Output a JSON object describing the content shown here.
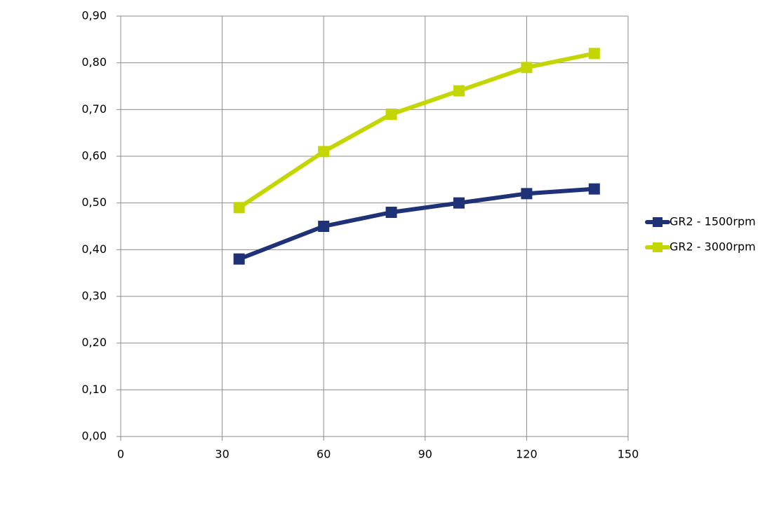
{
  "chart_data": {
    "type": "line",
    "x": [
      35,
      60,
      80,
      100,
      120,
      140
    ],
    "series": [
      {
        "name": "GR2 - 1500rpm",
        "color": "#1f3278",
        "values": [
          0.38,
          0.45,
          0.48,
          0.5,
          0.52,
          0.53
        ]
      },
      {
        "name": "GR2 - 3000rpm",
        "color": "#c4d600",
        "values": [
          0.49,
          0.61,
          0.69,
          0.74,
          0.79,
          0.82
        ]
      }
    ],
    "xlim": [
      0,
      150
    ],
    "xticks": [
      0,
      30,
      60,
      90,
      120,
      150
    ],
    "ylim": [
      0,
      0.9
    ],
    "yticks": [
      {
        "value": 0,
        "label": "0,00"
      },
      {
        "value": 0.1,
        "label": "0,10"
      },
      {
        "value": 0.2,
        "label": "0,20"
      },
      {
        "value": 0.3,
        "label": "0,30"
      },
      {
        "value": 0.4,
        "label": "0,40"
      },
      {
        "value": 0.5,
        "label": "0,50"
      },
      {
        "value": 0.6,
        "label": "0,60"
      },
      {
        "value": 0.7,
        "label": "0,70"
      },
      {
        "value": 0.8,
        "label": "0,80"
      },
      {
        "value": 0.9,
        "label": "0,90"
      }
    ],
    "grid": true,
    "legend": "right"
  }
}
